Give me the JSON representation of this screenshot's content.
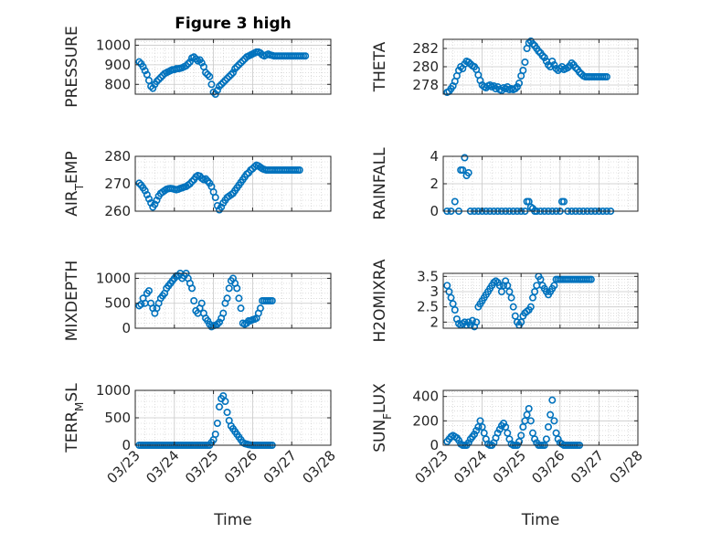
{
  "figure": {
    "title": "Figure 3 high"
  },
  "colors": {
    "marker": "#0072BD",
    "axis": "#262626",
    "grid": "#c8c8c8",
    "background": "#ffffff"
  },
  "chart_data": [
    {
      "type": "scatter",
      "panel": "pressure",
      "title": "Figure 3 high",
      "ylabel": "PRESSURE",
      "ylim": [
        750,
        1030
      ],
      "yticks": [
        "800",
        "900",
        "1000"
      ],
      "ytick_values": [
        800,
        900,
        1000
      ],
      "xlim": [
        0,
        5
      ],
      "xlabel": "",
      "grid": true,
      "x": [
        0.1,
        0.15,
        0.2,
        0.25,
        0.3,
        0.35,
        0.4,
        0.45,
        0.5,
        0.55,
        0.6,
        0.65,
        0.7,
        0.75,
        0.8,
        0.85,
        0.9,
        0.95,
        1.0,
        1.05,
        1.1,
        1.15,
        1.2,
        1.25,
        1.3,
        1.35,
        1.4,
        1.45,
        1.5,
        1.55,
        1.6,
        1.65,
        1.7,
        1.75,
        1.8,
        1.85,
        1.9,
        1.95,
        2.0,
        2.05,
        2.1,
        2.15,
        2.2,
        2.25,
        2.3,
        2.35,
        2.4,
        2.45,
        2.5,
        2.55,
        2.6,
        2.65,
        2.7,
        2.75,
        2.8,
        2.85,
        2.9,
        2.95,
        3.0,
        3.05,
        3.1,
        3.15,
        3.2,
        3.25,
        3.3,
        3.35,
        3.4,
        3.45,
        3.5,
        3.55,
        3.6,
        3.65,
        3.7,
        3.75,
        3.8,
        3.85,
        3.9,
        3.95,
        4.0,
        4.05,
        4.1,
        4.15,
        4.2,
        4.25,
        4.3,
        4.35
      ],
      "y": [
        915,
        905,
        890,
        870,
        850,
        820,
        790,
        780,
        800,
        815,
        825,
        835,
        845,
        855,
        860,
        865,
        870,
        875,
        875,
        880,
        880,
        882,
        885,
        890,
        895,
        905,
        915,
        935,
        940,
        930,
        920,
        925,
        910,
        890,
        860,
        850,
        840,
        800,
        760,
        750,
        770,
        790,
        800,
        810,
        820,
        830,
        840,
        850,
        860,
        880,
        890,
        900,
        910,
        920,
        930,
        940,
        945,
        950,
        955,
        960,
        965,
        965,
        960,
        950,
        945,
        950,
        955,
        950,
        948,
        945,
        945,
        945,
        945,
        945,
        945,
        945,
        945,
        945,
        945,
        945,
        945,
        945,
        945,
        945,
        945,
        945
      ]
    },
    {
      "type": "scatter",
      "panel": "theta",
      "ylabel": "THETA",
      "ylim": [
        277,
        283
      ],
      "yticks": [
        "278",
        "280",
        "282"
      ],
      "ytick_values": [
        278,
        280,
        282
      ],
      "xlim": [
        0,
        5
      ],
      "xlabel": "",
      "grid": true,
      "x": [
        0.1,
        0.15,
        0.2,
        0.25,
        0.3,
        0.35,
        0.4,
        0.45,
        0.5,
        0.55,
        0.6,
        0.65,
        0.7,
        0.75,
        0.8,
        0.85,
        0.9,
        0.95,
        1.0,
        1.05,
        1.1,
        1.15,
        1.2,
        1.25,
        1.3,
        1.35,
        1.4,
        1.45,
        1.5,
        1.55,
        1.6,
        1.65,
        1.7,
        1.75,
        1.8,
        1.85,
        1.9,
        1.95,
        2.0,
        2.05,
        2.1,
        2.15,
        2.2,
        2.25,
        2.3,
        2.35,
        2.4,
        2.45,
        2.5,
        2.55,
        2.6,
        2.65,
        2.7,
        2.75,
        2.8,
        2.85,
        2.9,
        2.95,
        3.0,
        3.05,
        3.1,
        3.15,
        3.2,
        3.25,
        3.3,
        3.35,
        3.4,
        3.45,
        3.5,
        3.55,
        3.6,
        3.65,
        3.7,
        3.75,
        3.8,
        3.85,
        3.9,
        3.95,
        4.0,
        4.05,
        4.1,
        4.15,
        4.2
      ],
      "y": [
        277.2,
        277.3,
        277.6,
        277.9,
        278.4,
        279.0,
        279.6,
        280.0,
        279.8,
        280.3,
        280.6,
        280.5,
        280.3,
        280.1,
        280.0,
        279.7,
        279.1,
        278.5,
        278.0,
        277.8,
        277.7,
        277.9,
        278.0,
        277.8,
        277.9,
        277.6,
        277.8,
        277.5,
        277.4,
        277.7,
        277.6,
        277.8,
        277.5,
        277.6,
        277.5,
        277.6,
        277.8,
        278.2,
        279.0,
        279.6,
        280.5,
        282.0,
        282.6,
        282.8,
        282.5,
        282.3,
        282.0,
        281.7,
        281.5,
        281.2,
        281.0,
        280.6,
        280.2,
        280.0,
        280.6,
        280.2,
        279.8,
        279.6,
        279.8,
        280.0,
        279.7,
        279.8,
        279.9,
        280.1,
        280.4,
        280.2,
        279.9,
        279.7,
        279.4,
        279.2,
        279.0,
        278.9,
        278.9,
        278.9,
        278.9,
        278.9,
        278.9,
        278.9,
        278.9,
        278.9,
        278.9,
        278.9,
        278.9
      ]
    },
    {
      "type": "scatter",
      "panel": "air_temp",
      "ylabel": "AIR_TEMP",
      "ylim": [
        260,
        280
      ],
      "yticks": [
        "260",
        "270",
        "280"
      ],
      "ytick_values": [
        260,
        270,
        280
      ],
      "xlim": [
        0,
        5
      ],
      "xlabel": "",
      "grid": true,
      "x": [
        0.1,
        0.15,
        0.2,
        0.25,
        0.3,
        0.35,
        0.4,
        0.45,
        0.5,
        0.55,
        0.6,
        0.65,
        0.7,
        0.75,
        0.8,
        0.85,
        0.9,
        0.95,
        1.0,
        1.05,
        1.1,
        1.15,
        1.2,
        1.25,
        1.3,
        1.35,
        1.4,
        1.45,
        1.5,
        1.55,
        1.6,
        1.65,
        1.7,
        1.75,
        1.8,
        1.85,
        1.9,
        1.95,
        2.0,
        2.05,
        2.1,
        2.15,
        2.2,
        2.25,
        2.3,
        2.35,
        2.4,
        2.45,
        2.5,
        2.55,
        2.6,
        2.65,
        2.7,
        2.75,
        2.8,
        2.85,
        2.9,
        2.95,
        3.0,
        3.05,
        3.1,
        3.15,
        3.2,
        3.25,
        3.3,
        3.35,
        3.4,
        3.45,
        3.5,
        3.55,
        3.6,
        3.65,
        3.7,
        3.75,
        3.8,
        3.85,
        3.9,
        3.95,
        4.0,
        4.05,
        4.1,
        4.15,
        4.2
      ],
      "y": [
        270.2,
        269.5,
        268.5,
        267.5,
        266.0,
        264.5,
        263.0,
        261.5,
        262.5,
        264.0,
        265.5,
        266.5,
        267.0,
        267.5,
        268.0,
        268.2,
        268.3,
        268.2,
        268.0,
        267.8,
        268.0,
        268.3,
        268.5,
        268.8,
        269.0,
        269.5,
        270.0,
        270.8,
        271.5,
        272.5,
        273.0,
        272.8,
        272.0,
        271.5,
        271.8,
        271.0,
        270.2,
        269.0,
        267.0,
        265.0,
        262.0,
        260.5,
        261.5,
        263.0,
        264.0,
        265.0,
        265.5,
        266.0,
        266.5,
        267.5,
        268.5,
        269.5,
        270.5,
        271.5,
        272.5,
        273.5,
        274.0,
        275.0,
        275.5,
        276.2,
        276.8,
        276.5,
        276.0,
        275.5,
        275.2,
        275.0,
        275.0,
        275.0,
        275.0,
        275.0,
        275.0,
        275.0,
        275.0,
        275.0,
        275.0,
        275.0,
        275.0,
        275.0,
        275.0,
        275.0,
        275.0,
        275.0,
        275.0
      ]
    },
    {
      "type": "scatter",
      "panel": "rainfall",
      "ylabel": "RAINFALL",
      "ylim": [
        0,
        4
      ],
      "yticks": [
        "0",
        "2",
        "4"
      ],
      "ytick_values": [
        0,
        2,
        4
      ],
      "xlim": [
        0,
        5
      ],
      "xlabel": "",
      "grid": true,
      "x": [
        0.1,
        0.2,
        0.3,
        0.4,
        0.45,
        0.5,
        0.55,
        0.6,
        0.65,
        0.7,
        0.8,
        0.9,
        1.0,
        1.1,
        1.2,
        1.3,
        1.4,
        1.5,
        1.6,
        1.7,
        1.8,
        1.9,
        2.0,
        2.1,
        2.15,
        2.2,
        2.25,
        2.3,
        2.35,
        2.4,
        2.5,
        2.6,
        2.7,
        2.8,
        2.9,
        3.0,
        3.05,
        3.1,
        3.2,
        3.3,
        3.4,
        3.5,
        3.6,
        3.7,
        3.8,
        3.9,
        4.0,
        4.1,
        4.2,
        4.3
      ],
      "y": [
        0,
        0,
        0.7,
        0,
        3.0,
        3.0,
        3.9,
        2.6,
        2.8,
        0,
        0,
        0,
        0,
        0,
        0,
        0,
        0,
        0,
        0,
        0,
        0,
        0,
        0,
        0,
        0.7,
        0.7,
        0.3,
        0.2,
        0,
        0,
        0,
        0,
        0,
        0,
        0,
        0,
        0.7,
        0.7,
        0,
        0,
        0,
        0,
        0,
        0,
        0,
        0,
        0,
        0,
        0,
        0
      ]
    },
    {
      "type": "scatter",
      "panel": "mixdepth",
      "ylabel": "MIXDEPTH",
      "ylim": [
        0,
        1100
      ],
      "yticks": [
        "0",
        "500",
        "1000"
      ],
      "ytick_values": [
        0,
        500,
        1000
      ],
      "xlim": [
        0,
        5
      ],
      "xlabel": "",
      "grid": true,
      "x": [
        0.1,
        0.15,
        0.2,
        0.25,
        0.3,
        0.35,
        0.4,
        0.45,
        0.5,
        0.55,
        0.6,
        0.65,
        0.7,
        0.75,
        0.8,
        0.85,
        0.9,
        0.95,
        1.0,
        1.05,
        1.1,
        1.15,
        1.2,
        1.25,
        1.3,
        1.35,
        1.4,
        1.45,
        1.5,
        1.55,
        1.6,
        1.65,
        1.7,
        1.75,
        1.8,
        1.85,
        1.9,
        1.95,
        2.0,
        2.05,
        2.1,
        2.15,
        2.2,
        2.25,
        2.3,
        2.35,
        2.4,
        2.45,
        2.5,
        2.55,
        2.6,
        2.65,
        2.7,
        2.75,
        2.8,
        2.85,
        2.9,
        2.95,
        3.0,
        3.05,
        3.1,
        3.15,
        3.2,
        3.25,
        3.3,
        3.35,
        3.4,
        3.45,
        3.5
      ],
      "y": [
        450,
        480,
        600,
        500,
        700,
        750,
        500,
        400,
        300,
        400,
        500,
        600,
        650,
        700,
        800,
        850,
        900,
        950,
        1000,
        1050,
        1050,
        1100,
        1000,
        1050,
        1100,
        1000,
        900,
        800,
        550,
        350,
        300,
        400,
        500,
        300,
        200,
        150,
        80,
        30,
        50,
        60,
        80,
        120,
        200,
        300,
        500,
        600,
        800,
        950,
        1000,
        900,
        800,
        600,
        400,
        100,
        80,
        100,
        150,
        150,
        170,
        180,
        200,
        300,
        400,
        550,
        550,
        550,
        550,
        550,
        550
      ]
    },
    {
      "type": "scatter",
      "panel": "h2omixra",
      "ylabel": "H2OMIXRA",
      "ylim": [
        1.8,
        3.6
      ],
      "yticks": [
        "2",
        "2.5",
        "3",
        "3.5"
      ],
      "ytick_values": [
        2,
        2.5,
        3,
        3.5
      ],
      "xlim": [
        0,
        5
      ],
      "xlabel": "",
      "grid": true,
      "x": [
        0.1,
        0.15,
        0.2,
        0.25,
        0.3,
        0.35,
        0.4,
        0.45,
        0.5,
        0.55,
        0.6,
        0.65,
        0.7,
        0.75,
        0.8,
        0.85,
        0.9,
        0.95,
        1.0,
        1.05,
        1.1,
        1.15,
        1.2,
        1.25,
        1.3,
        1.35,
        1.4,
        1.45,
        1.5,
        1.55,
        1.6,
        1.65,
        1.7,
        1.75,
        1.8,
        1.85,
        1.9,
        1.95,
        2.0,
        2.05,
        2.1,
        2.15,
        2.2,
        2.25,
        2.3,
        2.35,
        2.4,
        2.45,
        2.5,
        2.55,
        2.6,
        2.65,
        2.7,
        2.75,
        2.8,
        2.85,
        2.9,
        2.95,
        3.0,
        3.05,
        3.1,
        3.15,
        3.2,
        3.25,
        3.3,
        3.35,
        3.4,
        3.45,
        3.5,
        3.55,
        3.6,
        3.65,
        3.7,
        3.75,
        3.8
      ],
      "y": [
        3.2,
        3.0,
        2.8,
        2.6,
        2.4,
        2.1,
        1.95,
        1.9,
        1.95,
        2.0,
        1.9,
        2.0,
        1.9,
        2.05,
        1.85,
        2.0,
        2.5,
        2.6,
        2.7,
        2.8,
        2.9,
        3.0,
        3.1,
        3.2,
        3.3,
        3.35,
        3.3,
        3.2,
        3.0,
        3.2,
        3.35,
        3.2,
        3.0,
        2.8,
        2.5,
        2.2,
        2.0,
        1.9,
        2.0,
        2.2,
        2.3,
        2.35,
        2.4,
        2.5,
        2.8,
        3.0,
        3.2,
        3.5,
        3.4,
        3.2,
        3.1,
        3.0,
        2.9,
        3.0,
        3.1,
        3.2,
        3.4,
        3.4,
        3.4,
        3.4,
        3.4,
        3.4,
        3.4,
        3.4,
        3.4,
        3.4,
        3.4,
        3.4,
        3.4,
        3.4,
        3.4,
        3.4,
        3.4,
        3.4,
        3.4
      ]
    },
    {
      "type": "scatter",
      "panel": "terr_msl",
      "ylabel": "TERR_MSL",
      "ylim": [
        0,
        1000
      ],
      "yticks": [
        "0",
        "500",
        "1000"
      ],
      "ytick_values": [
        0,
        500,
        1000
      ],
      "xlim": [
        0,
        5
      ],
      "xlabel": "Time",
      "xticks": [
        "03/23",
        "03/24",
        "03/25",
        "03/26",
        "03/27",
        "03/28"
      ],
      "xtick_values": [
        0,
        1,
        2,
        3,
        4,
        5
      ],
      "grid": true,
      "x": [
        0.1,
        0.15,
        0.2,
        0.25,
        0.3,
        0.35,
        0.4,
        0.45,
        0.5,
        0.55,
        0.6,
        0.65,
        0.7,
        0.75,
        0.8,
        0.85,
        0.9,
        0.95,
        1.0,
        1.05,
        1.1,
        1.15,
        1.2,
        1.25,
        1.3,
        1.35,
        1.4,
        1.45,
        1.5,
        1.55,
        1.6,
        1.65,
        1.7,
        1.75,
        1.8,
        1.85,
        1.9,
        1.95,
        2.0,
        2.05,
        2.1,
        2.15,
        2.2,
        2.25,
        2.3,
        2.35,
        2.4,
        2.45,
        2.5,
        2.55,
        2.6,
        2.65,
        2.7,
        2.75,
        2.8,
        2.85,
        2.9,
        2.95,
        3.0,
        3.05,
        3.1,
        3.15,
        3.2,
        3.25,
        3.3,
        3.35,
        3.4,
        3.45,
        3.5
      ],
      "y": [
        0,
        0,
        0,
        0,
        0,
        0,
        0,
        0,
        0,
        0,
        0,
        0,
        0,
        0,
        0,
        0,
        0,
        0,
        0,
        0,
        0,
        0,
        0,
        0,
        0,
        0,
        0,
        0,
        0,
        0,
        0,
        0,
        0,
        0,
        0,
        0,
        0,
        50,
        100,
        200,
        400,
        700,
        850,
        900,
        800,
        600,
        450,
        350,
        300,
        250,
        200,
        150,
        100,
        50,
        30,
        20,
        10,
        5,
        0,
        0,
        0,
        0,
        0,
        0,
        0,
        0,
        0,
        0,
        0
      ]
    },
    {
      "type": "scatter",
      "panel": "sun_flux",
      "ylabel": "SUN_FLUX",
      "ylim": [
        0,
        450
      ],
      "yticks": [
        "0",
        "200",
        "400"
      ],
      "ytick_values": [
        0,
        200,
        400
      ],
      "xlim": [
        0,
        5
      ],
      "xlabel": "Time",
      "xticks": [
        "03/23",
        "03/24",
        "03/25",
        "03/26",
        "03/27",
        "03/28"
      ],
      "xtick_values": [
        0,
        1,
        2,
        3,
        4,
        5
      ],
      "grid": true,
      "x": [
        0.1,
        0.15,
        0.2,
        0.25,
        0.3,
        0.35,
        0.4,
        0.45,
        0.5,
        0.55,
        0.6,
        0.65,
        0.7,
        0.75,
        0.8,
        0.85,
        0.9,
        0.95,
        1.0,
        1.05,
        1.1,
        1.15,
        1.2,
        1.25,
        1.3,
        1.35,
        1.4,
        1.45,
        1.5,
        1.55,
        1.6,
        1.65,
        1.7,
        1.75,
        1.8,
        1.85,
        1.9,
        1.95,
        2.0,
        2.05,
        2.1,
        2.15,
        2.2,
        2.25,
        2.3,
        2.35,
        2.4,
        2.45,
        2.5,
        2.55,
        2.6,
        2.65,
        2.7,
        2.75,
        2.8,
        2.85,
        2.9,
        2.95,
        3.0,
        3.05,
        3.1,
        3.15,
        3.2,
        3.25,
        3.3,
        3.35,
        3.4,
        3.45,
        3.5
      ],
      "y": [
        30,
        50,
        70,
        80,
        70,
        60,
        40,
        10,
        0,
        0,
        0,
        20,
        50,
        70,
        90,
        120,
        150,
        200,
        150,
        100,
        50,
        10,
        0,
        0,
        20,
        60,
        100,
        130,
        160,
        180,
        150,
        100,
        50,
        10,
        0,
        0,
        0,
        30,
        80,
        150,
        200,
        250,
        300,
        200,
        100,
        50,
        20,
        0,
        0,
        0,
        0,
        50,
        150,
        250,
        370,
        200,
        100,
        50,
        20,
        10,
        0,
        0,
        0,
        0,
        0,
        0,
        0,
        0,
        0
      ]
    }
  ]
}
